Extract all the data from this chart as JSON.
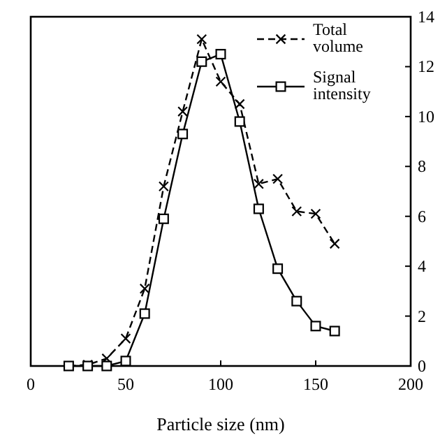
{
  "chart_data": {
    "type": "line",
    "xlabel": "Particle size (nm)",
    "x": [
      20,
      30,
      40,
      50,
      60,
      70,
      80,
      90,
      100,
      110,
      120,
      130,
      140,
      150,
      160
    ],
    "xlim": [
      0,
      200
    ],
    "xticks": [
      0,
      50,
      100,
      150,
      200
    ],
    "ylim": [
      0,
      14
    ],
    "yticks": [
      0,
      2,
      4,
      6,
      8,
      10,
      12,
      14
    ],
    "legend": "top right",
    "grid": false,
    "series": [
      {
        "name": "Total volume",
        "color": "#000000",
        "marker": "cross",
        "line_style": "dashed",
        "values": [
          0,
          0.05,
          0.3,
          1.1,
          3.1,
          7.2,
          10.2,
          13.1,
          11.4,
          10.5,
          7.3,
          7.5,
          6.2,
          6.1,
          4.9
        ]
      },
      {
        "name": "Signal intensity",
        "color": "#000000",
        "marker": "square",
        "line_style": "solid",
        "values": [
          0,
          0,
          0,
          0.2,
          2.1,
          5.9,
          9.3,
          12.2,
          12.5,
          9.8,
          6.3,
          3.9,
          2.6,
          1.6,
          1.4
        ]
      }
    ]
  }
}
